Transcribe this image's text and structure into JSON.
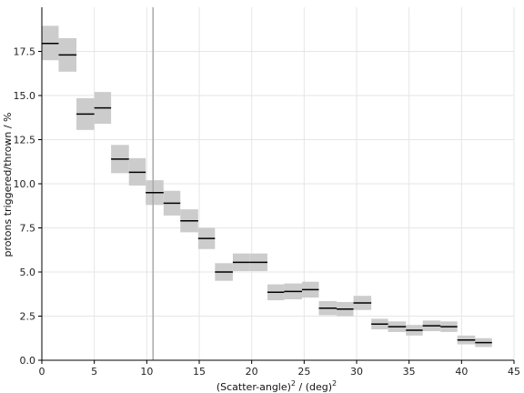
{
  "chart_data": {
    "type": "scatter",
    "xlabel_main": "(Scatter-angle)",
    "xlabel_sup1": "2",
    "xlabel_mid": " / (deg)",
    "xlabel_sup2": "2",
    "ylabel": "protons triggered/thrown / %",
    "xlim": [
      0,
      45
    ],
    "ylim": [
      0,
      20
    ],
    "xticks": [
      0,
      5,
      10,
      15,
      20,
      25,
      30,
      35,
      40,
      45
    ],
    "xtick_labels": [
      "0",
      "5",
      "10",
      "15",
      "20",
      "25",
      "30",
      "35",
      "40",
      "45"
    ],
    "yticks": [
      0,
      2.5,
      5,
      7.5,
      10,
      12.5,
      15,
      17.5
    ],
    "ytick_labels": [
      "0.0",
      "2.5",
      "5.0",
      "7.5",
      "10.0",
      "12.5",
      "15.0",
      "17.5"
    ],
    "grid": true,
    "vline_x": 10.6,
    "colors": {
      "band": "#cccccc",
      "line": "#000000",
      "vline": "#aaaaaa",
      "grid": "#e6e6e6"
    },
    "bins": [
      {
        "x0": 0.0,
        "x1": 1.6,
        "y": 17.95,
        "ylo": 17.0,
        "yhi": 18.95
      },
      {
        "x0": 1.6,
        "x1": 3.3,
        "y": 17.3,
        "ylo": 16.35,
        "yhi": 18.25
      },
      {
        "x0": 3.3,
        "x1": 5.0,
        "y": 13.95,
        "ylo": 13.05,
        "yhi": 14.85
      },
      {
        "x0": 5.0,
        "x1": 6.6,
        "y": 14.3,
        "ylo": 13.4,
        "yhi": 15.2
      },
      {
        "x0": 6.6,
        "x1": 8.3,
        "y": 11.4,
        "ylo": 10.6,
        "yhi": 12.2
      },
      {
        "x0": 8.3,
        "x1": 9.9,
        "y": 10.65,
        "ylo": 9.9,
        "yhi": 11.45
      },
      {
        "x0": 9.9,
        "x1": 11.6,
        "y": 9.5,
        "ylo": 8.8,
        "yhi": 10.2
      },
      {
        "x0": 11.6,
        "x1": 13.2,
        "y": 8.9,
        "ylo": 8.2,
        "yhi": 9.6
      },
      {
        "x0": 13.2,
        "x1": 14.9,
        "y": 7.9,
        "ylo": 7.25,
        "yhi": 8.55
      },
      {
        "x0": 14.9,
        "x1": 16.5,
        "y": 6.9,
        "ylo": 6.3,
        "yhi": 7.5
      },
      {
        "x0": 16.5,
        "x1": 18.2,
        "y": 5.0,
        "ylo": 4.5,
        "yhi": 5.5
      },
      {
        "x0": 18.2,
        "x1": 19.8,
        "y": 5.55,
        "ylo": 5.05,
        "yhi": 6.05
      },
      {
        "x0": 19.8,
        "x1": 21.5,
        "y": 5.55,
        "ylo": 5.05,
        "yhi": 6.05
      },
      {
        "x0": 21.5,
        "x1": 23.1,
        "y": 3.85,
        "ylo": 3.4,
        "yhi": 4.3
      },
      {
        "x0": 23.1,
        "x1": 24.8,
        "y": 3.9,
        "ylo": 3.45,
        "yhi": 4.35
      },
      {
        "x0": 24.8,
        "x1": 26.4,
        "y": 4.0,
        "ylo": 3.55,
        "yhi": 4.45
      },
      {
        "x0": 26.4,
        "x1": 28.1,
        "y": 2.95,
        "ylo": 2.55,
        "yhi": 3.35
      },
      {
        "x0": 28.1,
        "x1": 29.7,
        "y": 2.9,
        "ylo": 2.5,
        "yhi": 3.3
      },
      {
        "x0": 29.7,
        "x1": 31.4,
        "y": 3.25,
        "ylo": 2.85,
        "yhi": 3.65
      },
      {
        "x0": 31.4,
        "x1": 33.0,
        "y": 2.05,
        "ylo": 1.75,
        "yhi": 2.35
      },
      {
        "x0": 33.0,
        "x1": 34.7,
        "y": 1.9,
        "ylo": 1.6,
        "yhi": 2.2
      },
      {
        "x0": 34.7,
        "x1": 36.3,
        "y": 1.7,
        "ylo": 1.4,
        "yhi": 2.0
      },
      {
        "x0": 36.3,
        "x1": 38.0,
        "y": 1.95,
        "ylo": 1.65,
        "yhi": 2.25
      },
      {
        "x0": 38.0,
        "x1": 39.6,
        "y": 1.9,
        "ylo": 1.6,
        "yhi": 2.2
      },
      {
        "x0": 39.6,
        "x1": 41.3,
        "y": 1.15,
        "ylo": 0.9,
        "yhi": 1.4
      },
      {
        "x0": 41.3,
        "x1": 42.9,
        "y": 1.0,
        "ylo": 0.75,
        "yhi": 1.25
      }
    ]
  }
}
